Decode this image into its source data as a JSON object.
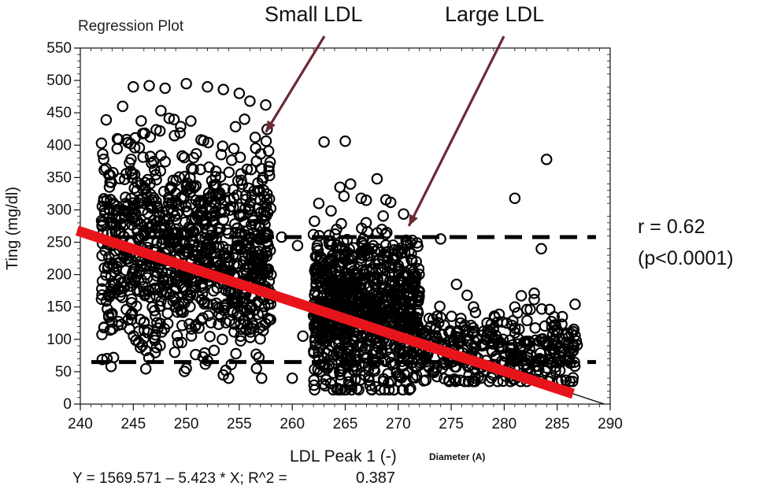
{
  "chart_data": {
    "type": "scatter",
    "title": "Regression Plot",
    "xlabel": "LDL Peak 1 (-)",
    "xlabel_units": "Diameter (A)",
    "ylabel": "Ting (mg/dl)",
    "xlim": [
      240,
      290
    ],
    "ylim": [
      0,
      550
    ],
    "xticks": [
      240,
      245,
      250,
      255,
      260,
      265,
      270,
      275,
      280,
      285,
      290
    ],
    "yticks": [
      0,
      50,
      100,
      150,
      200,
      250,
      300,
      350,
      400,
      450,
      500,
      550
    ],
    "x_minor_step": 1,
    "y_minor_step": 10,
    "grid": false,
    "annotations": [
      {
        "text": "Small LDL",
        "arrow_to": {
          "x": 257.5,
          "y": 420
        }
      },
      {
        "text": "Large LDL",
        "arrow_to": {
          "x": 271,
          "y": 275
        }
      }
    ],
    "regression": {
      "intercept": 1569.571,
      "slope": -5.423,
      "equation": "Y = 1569.571 – 5.423 * X; R^2 =",
      "r2": "0.387",
      "highlight_color": "#e8141c",
      "highlight_x_range": [
        240,
        286.5
      ],
      "fit_line_color": "#000000"
    },
    "reference_lines": [
      {
        "y": 258,
        "style": "dashed",
        "color": "#000000"
      },
      {
        "y": 65,
        "style": "dashed",
        "color": "#000000"
      }
    ],
    "correlation": {
      "r_text": "r = 0.62",
      "p_text": "(p<0.0001)"
    },
    "point_style": {
      "marker": "open-circle",
      "color": "#000000"
    },
    "point_clusters": [
      {
        "x_range": [
          242,
          258
        ],
        "y_center": 240,
        "y_spread": 80,
        "y_range": [
          40,
          495
        ],
        "count": 1000
      },
      {
        "x_range": [
          262,
          272
        ],
        "y_center": 145,
        "y_spread": 60,
        "y_range": [
          22,
          345
        ],
        "count": 900
      },
      {
        "x_range": [
          272,
          287
        ],
        "y_center": 85,
        "y_spread": 30,
        "y_range": [
          35,
          190
        ],
        "count": 360
      }
    ],
    "outlier_points": [
      {
        "x": 242,
        "y": 403
      },
      {
        "x": 243.5,
        "y": 410
      },
      {
        "x": 244.5,
        "y": 404
      },
      {
        "x": 242.5,
        "y": 315
      },
      {
        "x": 244,
        "y": 460
      },
      {
        "x": 245,
        "y": 490
      },
      {
        "x": 246.5,
        "y": 492
      },
      {
        "x": 248,
        "y": 488
      },
      {
        "x": 250,
        "y": 495
      },
      {
        "x": 252,
        "y": 490
      },
      {
        "x": 253.5,
        "y": 486
      },
      {
        "x": 255,
        "y": 480
      },
      {
        "x": 256,
        "y": 468
      },
      {
        "x": 257.5,
        "y": 462
      },
      {
        "x": 255.5,
        "y": 440
      },
      {
        "x": 256.5,
        "y": 412
      },
      {
        "x": 242,
        "y": 162
      },
      {
        "x": 243,
        "y": 140
      },
      {
        "x": 244.5,
        "y": 130
      },
      {
        "x": 263,
        "y": 405
      },
      {
        "x": 265,
        "y": 406
      },
      {
        "x": 265.5,
        "y": 340
      },
      {
        "x": 264.5,
        "y": 335
      },
      {
        "x": 266.5,
        "y": 318
      },
      {
        "x": 268,
        "y": 348
      },
      {
        "x": 262,
        "y": 262
      },
      {
        "x": 262.5,
        "y": 310
      },
      {
        "x": 267.5,
        "y": 22
      },
      {
        "x": 274,
        "y": 255
      },
      {
        "x": 275.5,
        "y": 185
      },
      {
        "x": 276.5,
        "y": 168
      },
      {
        "x": 281,
        "y": 318
      },
      {
        "x": 284,
        "y": 378
      },
      {
        "x": 283.5,
        "y": 240
      },
      {
        "x": 281,
        "y": 150
      },
      {
        "x": 286.5,
        "y": 112
      },
      {
        "x": 286.5,
        "y": 82
      },
      {
        "x": 285,
        "y": 110
      },
      {
        "x": 253.5,
        "y": 45
      },
      {
        "x": 250,
        "y": 55
      },
      {
        "x": 260,
        "y": 40
      },
      {
        "x": 259,
        "y": 258
      },
      {
        "x": 260.5,
        "y": 245
      },
      {
        "x": 258,
        "y": 200
      },
      {
        "x": 261,
        "y": 105
      }
    ]
  }
}
